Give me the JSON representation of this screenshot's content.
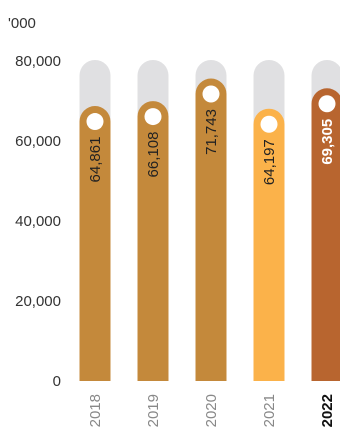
{
  "chart_data": {
    "type": "bar",
    "unit_label": "'000",
    "categories": [
      "2018",
      "2019",
      "2020",
      "2021",
      "2022"
    ],
    "values": [
      64861,
      66108,
      71743,
      64197,
      69305
    ],
    "value_labels": [
      "64,861",
      "66,108",
      "71,743",
      "64,197",
      "69,305"
    ],
    "highlight_category": "2022",
    "ylim": [
      0,
      80000
    ],
    "yticks": [
      0,
      20000,
      40000,
      60000,
      80000
    ],
    "ytick_labels": [
      "0",
      "20,000",
      "40,000",
      "60,000",
      "80,000"
    ],
    "grid": false,
    "bar_colors": [
      "#c4893b",
      "#c4893b",
      "#c4893b",
      "#fbb24a",
      "#b8652f"
    ],
    "background_track_color": "#e0e0e2",
    "marker_color": "#ffffff"
  }
}
